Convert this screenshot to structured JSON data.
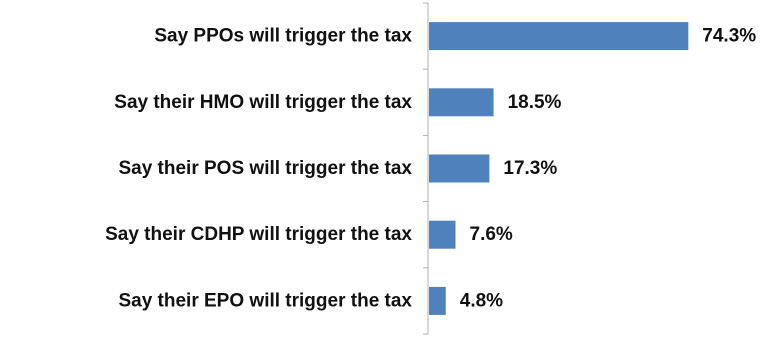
{
  "chart_data": {
    "type": "bar",
    "orientation": "horizontal",
    "categories": [
      "Say PPOs will trigger the tax",
      "Say their HMO will trigger the tax",
      "Say their POS will trigger the tax",
      "Say their CDHP will trigger the tax",
      "Say their EPO will trigger the tax"
    ],
    "values": [
      74.3,
      18.5,
      17.3,
      7.6,
      4.8
    ],
    "value_labels": [
      "74.3%",
      "18.5%",
      "17.3%",
      "7.6%",
      "4.8%"
    ],
    "unit": "%",
    "xlim": [
      0,
      100
    ],
    "bar_color": "#4F81BD",
    "axis_color": "#B0B0B0",
    "grid": false,
    "legend": "none"
  }
}
